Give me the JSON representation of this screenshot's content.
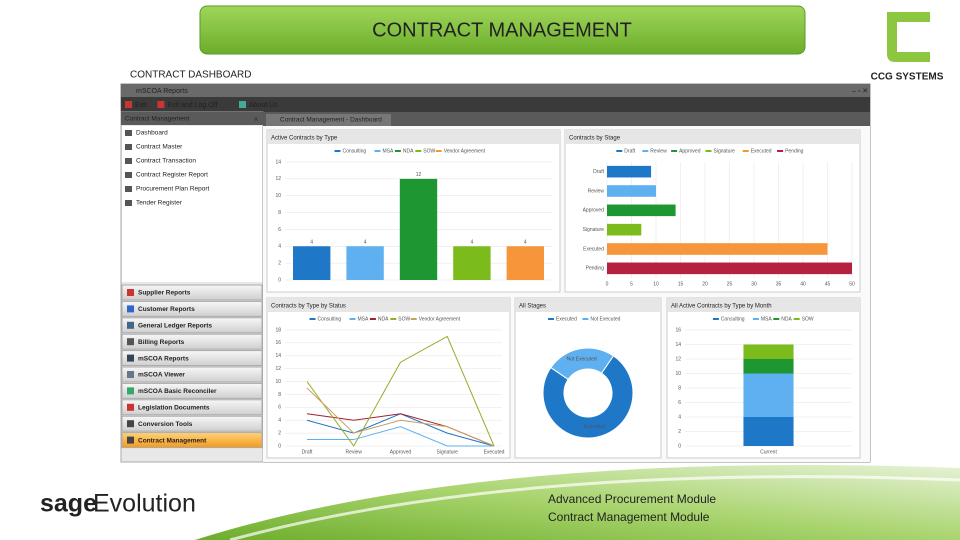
{
  "header": {
    "title": "CONTRACT MANAGEMENT",
    "subtitle": "CONTRACT DASHBOARD",
    "logo": "CCG SYSTEMS"
  },
  "app": {
    "window_title": "mSCOA Reports",
    "toolbar": [
      "Exit",
      "Exit and Log Off",
      "About Us"
    ],
    "sidebar_title": "Contract Management",
    "menu": [
      "Dashboard",
      "Contract Master",
      "Contract Transaction",
      "Contract Register Report",
      "Procurement Plan Report",
      "Tender Register"
    ],
    "modules": [
      "Supplier Reports",
      "Customer Reports",
      "General Ledger Reports",
      "Billing Reports",
      "mSCOA Reports",
      "mSCOA Viewer",
      "mSCOA Basic Reconciler",
      "Legislation Documents",
      "Conversion Tools",
      "Contract Management"
    ],
    "tab": "Contract Management - Dashboard"
  },
  "dashboard": {
    "charts": [
      {
        "type": "bar",
        "title": "Active Contracts by Type",
        "categories": [
          "Consulting",
          "MSA",
          "NDA",
          "SOW",
          "Vendor Agreement"
        ],
        "values": [
          4,
          4,
          12,
          4,
          4
        ],
        "colors": [
          "#1f77c8",
          "#5fb0f0",
          "#1e9631",
          "#7cbb1c",
          "#f7953a"
        ],
        "ylim": [
          0,
          14
        ],
        "yticks": [
          0,
          2,
          4,
          6,
          8,
          10,
          12,
          14
        ]
      },
      {
        "type": "hbar",
        "title": "Contracts by Stage",
        "categories": [
          "Draft",
          "Review",
          "Approved",
          "Signature",
          "Executed",
          "Pending"
        ],
        "values": [
          9,
          10,
          14,
          7,
          45,
          50
        ],
        "colors": [
          "#1f77c8",
          "#5fb0f0",
          "#1e9631",
          "#7cbb1c",
          "#f7953a",
          "#b5213f"
        ],
        "xlim": [
          0,
          50
        ],
        "xticks": [
          0,
          5,
          10,
          15,
          20,
          25,
          30,
          35,
          40,
          45,
          50
        ]
      },
      {
        "type": "line",
        "title": "Contracts by Type by Status",
        "categories": [
          "Draft",
          "Review",
          "Approved",
          "Signature",
          "Executed"
        ],
        "series": [
          {
            "name": "Consulting",
            "color": "#1f77c8",
            "values": [
              4,
              2,
              5,
              2,
              0
            ]
          },
          {
            "name": "MSA",
            "color": "#5fb0f0",
            "values": [
              1,
              1,
              3,
              0,
              0
            ]
          },
          {
            "name": "NDA",
            "color": "#a02030",
            "values": [
              5,
              4,
              5,
              3,
              0
            ]
          },
          {
            "name": "SOW",
            "color": "#9aaa2a",
            "values": [
              10,
              0,
              13,
              17,
              0
            ]
          },
          {
            "name": "Vendor Agreement",
            "color": "#c8a060",
            "values": [
              9,
              2,
              4,
              3,
              0
            ]
          }
        ],
        "ylim": [
          0,
          18
        ],
        "yticks": [
          0,
          2,
          4,
          6,
          8,
          10,
          12,
          14,
          16,
          18
        ]
      },
      {
        "type": "pie",
        "title": "All Stages",
        "categories": [
          "Executed",
          "Not Executed"
        ],
        "values": [
          75,
          25
        ],
        "colors": [
          "#1f77c8",
          "#5fb0f0"
        ]
      },
      {
        "type": "stacked",
        "title": "All Active Contracts by Type by Month",
        "categories": [
          "Current"
        ],
        "series": [
          {
            "name": "Consulting",
            "color": "#1f77c8",
            "values": [
              4
            ]
          },
          {
            "name": "MSA",
            "color": "#5fb0f0",
            "values": [
              6
            ]
          },
          {
            "name": "NDA",
            "color": "#1e9631",
            "values": [
              2
            ]
          },
          {
            "name": "SOW",
            "color": "#7cbb1c",
            "values": [
              2
            ]
          }
        ],
        "ylim": [
          0,
          16
        ],
        "yticks": [
          0,
          2,
          4,
          6,
          8,
          10,
          12,
          14,
          16
        ]
      }
    ]
  },
  "footer": {
    "brand_a": "sage",
    "brand_b": "Evolution",
    "lines": [
      "Advanced Procurement Module",
      "Contract Management Module"
    ]
  }
}
